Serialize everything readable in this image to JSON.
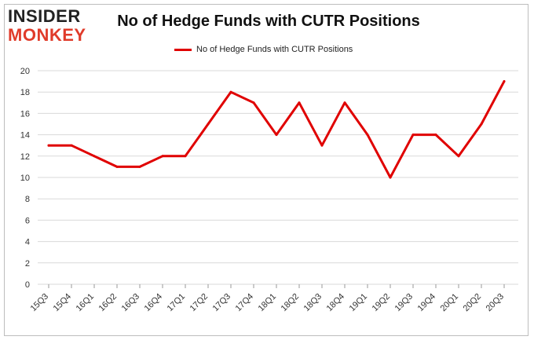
{
  "brand": {
    "line1": "INSIDER",
    "line2": "MONKEY",
    "accent": "#e03b2a"
  },
  "chart_data": {
    "type": "line",
    "title": "No of Hedge Funds with CUTR Positions",
    "categories": [
      "15Q3",
      "15Q4",
      "16Q1",
      "16Q2",
      "16Q3",
      "16Q4",
      "17Q1",
      "17Q2",
      "17Q3",
      "17Q4",
      "18Q1",
      "18Q2",
      "18Q3",
      "18Q4",
      "19Q1",
      "19Q2",
      "19Q3",
      "19Q4",
      "20Q1",
      "20Q2",
      "20Q3"
    ],
    "series": [
      {
        "name": "No of Hedge Funds with CUTR Positions",
        "color": "#e00000",
        "values": [
          13,
          13,
          12,
          11,
          11,
          12,
          12,
          15,
          18,
          17,
          14,
          17,
          13,
          17,
          14,
          10,
          14,
          14,
          12,
          15,
          19
        ]
      }
    ],
    "yticks": [
      0,
      2,
      4,
      6,
      8,
      10,
      12,
      14,
      16,
      18,
      20
    ],
    "ylim": [
      0,
      20
    ],
    "grid": true,
    "legend_position": "top-center"
  }
}
